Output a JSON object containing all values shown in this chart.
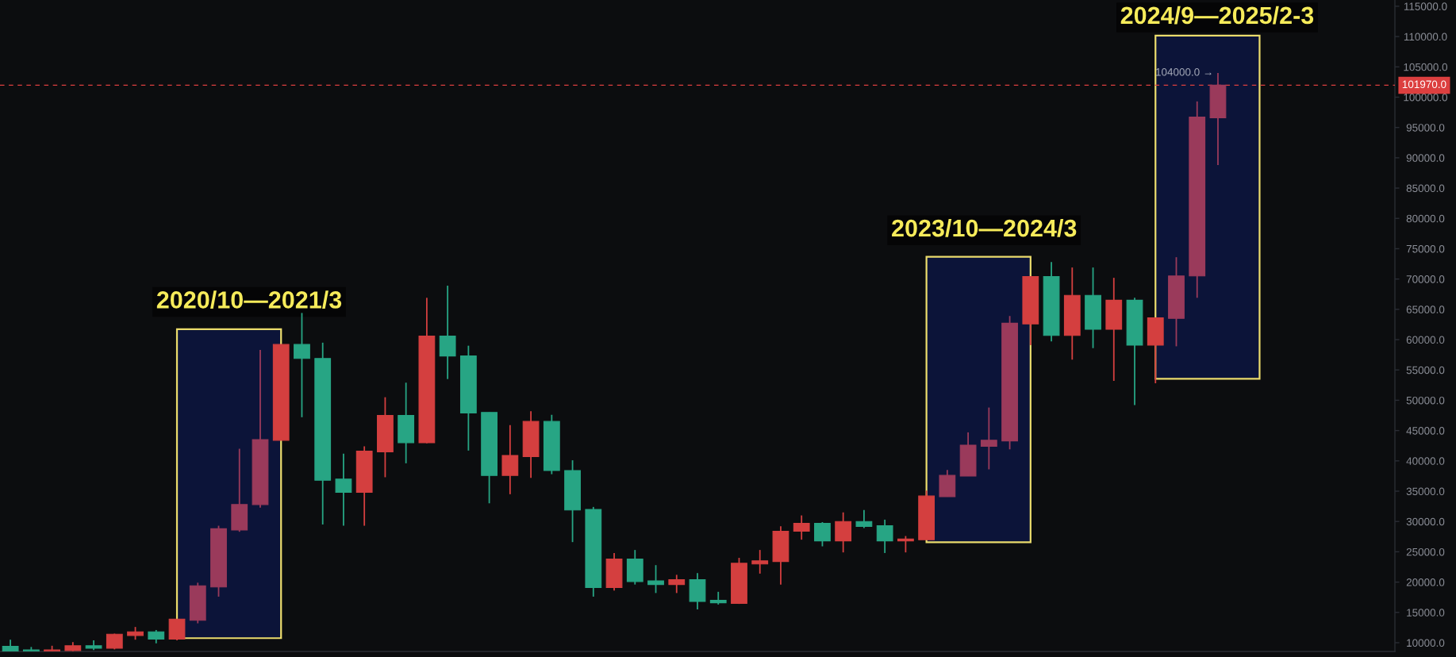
{
  "chart_data": {
    "type": "candlestick",
    "categories": [
      null,
      null,
      null,
      null,
      null,
      null,
      null,
      null,
      null,
      null,
      null,
      null,
      null,
      null,
      null,
      null,
      null,
      null,
      null,
      null,
      null,
      null,
      null,
      null,
      null,
      null,
      null,
      null,
      null,
      null,
      null,
      null,
      null,
      null,
      null,
      null,
      null,
      null,
      null,
      null,
      null,
      null,
      null,
      null,
      null,
      null,
      null,
      null,
      null,
      null,
      null,
      null,
      null,
      null,
      null,
      null,
      null,
      null,
      null,
      null,
      null,
      null,
      null,
      null,
      null,
      null,
      null
    ],
    "ohlc": [
      [
        9400,
        10500,
        8600,
        8600
      ],
      [
        8800,
        9300,
        8600,
        8600
      ],
      [
        8600,
        9500,
        8600,
        8800
      ],
      [
        8700,
        10100,
        8600,
        9500
      ],
      [
        9500,
        10400,
        8800,
        9100
      ],
      [
        9100,
        11500,
        8900,
        11400
      ],
      [
        11200,
        12600,
        10500,
        11800
      ],
      [
        11800,
        12100,
        9900,
        10600
      ],
      [
        10600,
        13900,
        10400,
        13900
      ],
      [
        13700,
        19900,
        13200,
        19400
      ],
      [
        19200,
        29300,
        17600,
        28800
      ],
      [
        28600,
        42000,
        28300,
        32800
      ],
      [
        32800,
        58300,
        32300,
        43500
      ],
      [
        43400,
        59200,
        43400,
        59200
      ],
      [
        59200,
        64400,
        47200,
        56900
      ],
      [
        56900,
        59500,
        29500,
        36800
      ],
      [
        37000,
        41200,
        29300,
        34800
      ],
      [
        34800,
        42400,
        29300,
        41600
      ],
      [
        41500,
        50500,
        37300,
        47500
      ],
      [
        47500,
        52900,
        39600,
        43000
      ],
      [
        43000,
        66900,
        42900,
        60600
      ],
      [
        60600,
        68900,
        53500,
        57300
      ],
      [
        57300,
        59000,
        41700,
        47900
      ],
      [
        48000,
        48000,
        33000,
        37600
      ],
      [
        37600,
        45900,
        34500,
        40900
      ],
      [
        40700,
        48200,
        37200,
        46500
      ],
      [
        46500,
        47600,
        37800,
        38400
      ],
      [
        38400,
        40100,
        26600,
        31900
      ],
      [
        32000,
        32400,
        17600,
        19100
      ],
      [
        19100,
        24800,
        18600,
        23800
      ],
      [
        23800,
        25300,
        19600,
        20100
      ],
      [
        20200,
        22800,
        18200,
        19600
      ],
      [
        19600,
        21200,
        18200,
        20400
      ],
      [
        20400,
        21500,
        15500,
        16800
      ],
      [
        17000,
        18400,
        16300,
        16600
      ],
      [
        16500,
        24000,
        16400,
        23100
      ],
      [
        23000,
        25300,
        21400,
        23500
      ],
      [
        23400,
        29200,
        19600,
        28400
      ],
      [
        28400,
        31000,
        27000,
        29700
      ],
      [
        29700,
        29900,
        25900,
        26800
      ],
      [
        26800,
        31500,
        24900,
        30000
      ],
      [
        30000,
        31900,
        28900,
        29200
      ],
      [
        29300,
        30300,
        24800,
        26800
      ],
      [
        26800,
        27600,
        24900,
        27100
      ],
      [
        27000,
        35100,
        27000,
        34200
      ],
      [
        34100,
        38500,
        34100,
        37600
      ],
      [
        37500,
        44700,
        37500,
        42600
      ],
      [
        42400,
        48800,
        38600,
        43400
      ],
      [
        43300,
        63900,
        41900,
        62700
      ],
      [
        62600,
        70400,
        59100,
        70400
      ],
      [
        70400,
        72800,
        59700,
        60700
      ],
      [
        60700,
        71900,
        56700,
        67300
      ],
      [
        67300,
        71900,
        58600,
        61700
      ],
      [
        61700,
        70200,
        53200,
        66500
      ],
      [
        66500,
        66900,
        49200,
        59100
      ],
      [
        59100,
        63600,
        52800,
        63600
      ],
      [
        63500,
        73600,
        58900,
        70500
      ],
      [
        70500,
        99300,
        66900,
        96700
      ],
      [
        96600,
        104000,
        88800,
        101970
      ],
      null,
      null,
      null,
      null,
      null,
      null,
      null,
      null
    ],
    "colors": [
      "#27a584",
      "#27a584",
      "#d43f3f",
      "#d43f3f",
      "#27a584",
      "#d43f3f",
      "#d43f3f",
      "#27a584",
      "#d43f3f",
      "#9a3a5b",
      "#9a3a5b",
      "#9a3a5b",
      "#9a3a5b",
      "#d43f3f",
      "#27a584",
      "#27a584",
      "#27a584",
      "#d43f3f",
      "#d43f3f",
      "#27a584",
      "#d43f3f",
      "#27a584",
      "#27a584",
      "#27a584",
      "#d43f3f",
      "#d43f3f",
      "#27a584",
      "#27a584",
      "#27a584",
      "#d43f3f",
      "#27a584",
      "#27a584",
      "#d43f3f",
      "#27a584",
      "#27a584",
      "#d43f3f",
      "#d43f3f",
      "#d43f3f",
      "#d43f3f",
      "#27a584",
      "#d43f3f",
      "#27a584",
      "#27a584",
      "#d43f3f",
      "#d43f3f",
      "#9a3a5b",
      "#9a3a5b",
      "#9a3a5b",
      "#9a3a5b",
      "#d43f3f",
      "#27a584",
      "#d43f3f",
      "#27a584",
      "#d43f3f",
      "#27a584",
      "#d43f3f",
      "#9a3a5b",
      "#9a3a5b",
      "#9a3a5b",
      null,
      null,
      null,
      null,
      null,
      null,
      null,
      null
    ],
    "ylim": [
      8560,
      116030
    ],
    "yticks": [
      {
        "value": 10000,
        "label": "10000.0"
      },
      {
        "value": 15000,
        "label": "15000.0"
      },
      {
        "value": 20000,
        "label": "20000.0"
      },
      {
        "value": 25000,
        "label": "25000.0"
      },
      {
        "value": 30000,
        "label": "30000.0"
      },
      {
        "value": 35000,
        "label": "35000.0"
      },
      {
        "value": 40000,
        "label": "40000.0"
      },
      {
        "value": 45000,
        "label": "45000.0"
      },
      {
        "value": 50000,
        "label": "50000.0"
      },
      {
        "value": 55000,
        "label": "55000.0"
      },
      {
        "value": 60000,
        "label": "60000.0"
      },
      {
        "value": 65000,
        "label": "65000.0"
      },
      {
        "value": 70000,
        "label": "70000.0"
      },
      {
        "value": 75000,
        "label": "75000.0"
      },
      {
        "value": 80000,
        "label": "80000.0"
      },
      {
        "value": 85000,
        "label": "85000.0"
      },
      {
        "value": 90000,
        "label": "90000.0"
      },
      {
        "value": 95000,
        "label": "95000.0"
      },
      {
        "value": 100000,
        "label": "100000.0"
      },
      {
        "value": 105000,
        "label": "105000.0"
      },
      {
        "value": 110000,
        "label": "110000.0"
      },
      {
        "value": 115000,
        "label": "115000.0"
      }
    ],
    "tick_labels": "y",
    "ref_lines": [
      {
        "axis": "y",
        "value": 101970,
        "label": "101970.0",
        "color": "#dc3f3f",
        "line_style": "dashed"
      }
    ],
    "annotations": [
      "2020/10—2021/3",
      "2023/10—2024/3",
      "2024/9—2025/2-3",
      "104000.0 →"
    ]
  }
}
